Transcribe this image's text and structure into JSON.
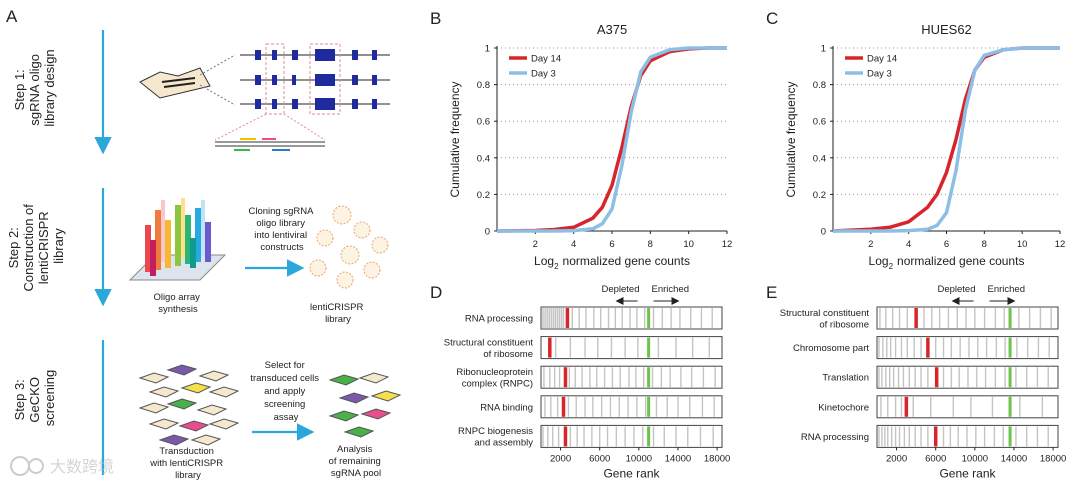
{
  "panel_a": {
    "letter": "A",
    "steps": [
      [
        "Step 1:",
        "sgRNA oligo",
        "library design"
      ],
      [
        "Step 2:",
        "Construction of",
        "lentiCRISPR",
        "library"
      ],
      [
        "Step 3:",
        "GeCKO",
        "screening"
      ]
    ],
    "cloning": [
      "Cloning sgRNA",
      "oligo library",
      "into lentiviral",
      "constructs"
    ],
    "oligo": [
      "Oligo array",
      "synthesis"
    ],
    "library": [
      "lentiCRISPR",
      "library"
    ],
    "select": [
      "Select for",
      "transduced cells",
      "and apply",
      "screening",
      "assay"
    ],
    "transduction": [
      "Transduction",
      "with lentiCRISPR",
      "library"
    ],
    "analysis": [
      "Analysis",
      "of remaining",
      "sgRNA pool"
    ]
  },
  "watermark": "大数跨境",
  "chart_data": [
    {
      "panel": "B",
      "type": "line",
      "title": "A375",
      "ylabel": "Cumulative frequency",
      "xlabel": [
        "Log",
        "2",
        "normalized gene counts"
      ],
      "x": [
        0,
        2,
        3,
        4,
        5,
        5.5,
        6,
        6.5,
        7,
        7.5,
        8,
        9,
        10,
        11,
        12
      ],
      "xlim": [
        0,
        12
      ],
      "ylim": [
        0,
        1
      ],
      "xticks": [
        2,
        4,
        6,
        8,
        10,
        12
      ],
      "yticks": [
        0,
        0.2,
        0.4,
        0.6,
        0.8,
        1
      ],
      "grid": true,
      "legend": "upper left",
      "series": [
        {
          "name": "Day 14",
          "color": "#d7262b",
          "values": [
            0,
            0.003,
            0.008,
            0.02,
            0.07,
            0.13,
            0.25,
            0.45,
            0.68,
            0.85,
            0.93,
            0.98,
            0.995,
            1,
            1
          ]
        },
        {
          "name": "Day 3",
          "color": "#8cbfe6",
          "values": [
            0,
            0,
            0,
            0.002,
            0.012,
            0.04,
            0.12,
            0.35,
            0.65,
            0.87,
            0.95,
            0.99,
            1,
            1,
            1
          ]
        }
      ]
    },
    {
      "panel": "C",
      "type": "line",
      "title": "HUES62",
      "ylabel": "Cumulative frequency",
      "xlabel": [
        "Log",
        "2",
        "normalized gene counts"
      ],
      "x": [
        0,
        2,
        3,
        4,
        5,
        5.5,
        6,
        6.5,
        7,
        7.5,
        8,
        9,
        10,
        11,
        12
      ],
      "xlim": [
        0,
        12
      ],
      "ylim": [
        0,
        1
      ],
      "xticks": [
        2,
        4,
        6,
        8,
        10,
        12
      ],
      "yticks": [
        0,
        0.2,
        0.4,
        0.6,
        0.8,
        1
      ],
      "grid": true,
      "legend": "upper left",
      "series": [
        {
          "name": "Day 14",
          "color": "#d7262b",
          "values": [
            0,
            0.01,
            0.02,
            0.05,
            0.13,
            0.2,
            0.32,
            0.5,
            0.72,
            0.88,
            0.95,
            0.99,
            1,
            1,
            1
          ]
        },
        {
          "name": "Day 3",
          "color": "#8cbfe6",
          "values": [
            0,
            0,
            0,
            0.002,
            0.01,
            0.03,
            0.1,
            0.33,
            0.66,
            0.88,
            0.96,
            0.99,
            1,
            1,
            1
          ]
        }
      ]
    },
    {
      "panel": "D",
      "type": "barcode",
      "xlabel": "Gene rank",
      "xlim": [
        0,
        18500
      ],
      "xticks": [
        2000,
        6000,
        10000,
        14000,
        18000
      ],
      "annotations": [
        "Depleted",
        "Enriched"
      ],
      "gene_color": "#c4c4c4",
      "red_color": "#d7262b",
      "green_color": "#6cc24a",
      "rows": [
        {
          "label": [
            "RNA processing"
          ],
          "ranks": [
            100,
            300,
            500,
            700,
            900,
            1100,
            1300,
            1500,
            1700,
            1900,
            2100,
            2300,
            3200,
            3900,
            4600,
            5400,
            6100,
            6900,
            7600,
            8300,
            9100,
            9800,
            10600,
            11500,
            12400,
            13300,
            14200,
            15300,
            16400,
            17500
          ],
          "red_rank": 2700,
          "green_rank": 11000
        },
        {
          "label": [
            "Structural constituent",
            "of ribosome"
          ],
          "ranks": [
            1500,
            3000,
            4500,
            5800,
            7200,
            8600,
            9900,
            12000,
            13800,
            15500,
            17200
          ],
          "red_rank": 900,
          "green_rank": 11000
        },
        {
          "label": [
            "Ribonucleoprotein",
            "complex (RNPC)"
          ],
          "ranks": [
            300,
            900,
            1400,
            1900,
            2900,
            3500,
            4200,
            5000,
            5700,
            6500,
            7300,
            8100,
            9000,
            9700,
            10500,
            11400,
            12300,
            13200,
            14300,
            15400,
            16600,
            17800
          ],
          "red_rank": 2500,
          "green_rank": 11000
        },
        {
          "label": [
            "RNA binding"
          ],
          "ranks": [
            400,
            1000,
            1700,
            2800,
            3600,
            4500,
            5300,
            6200,
            7100,
            8000,
            8900,
            9800,
            10700,
            11800,
            12900,
            14000,
            15200,
            16500,
            17700
          ],
          "red_rank": 2300,
          "green_rank": 11000
        },
        {
          "label": [
            "RNPC biogenesis",
            "and assembly"
          ],
          "ranks": [
            200,
            700,
            1200,
            1800,
            3000,
            3700,
            4400,
            5200,
            6000,
            6800,
            7700,
            8600,
            9500,
            10400,
            11500,
            12600,
            13800,
            15000,
            16300,
            17600
          ],
          "red_rank": 2500,
          "green_rank": 11000
        }
      ]
    },
    {
      "panel": "E",
      "type": "barcode",
      "xlabel": "Gene rank",
      "xlim": [
        0,
        18500
      ],
      "xticks": [
        2000,
        6000,
        10000,
        14000,
        18000
      ],
      "annotations": [
        "Depleted",
        "Enriched"
      ],
      "gene_color": "#c4c4c4",
      "red_color": "#d7262b",
      "green_color": "#6cc24a",
      "rows": [
        {
          "label": [
            "Structural constituent",
            "of ribosome"
          ],
          "ranks": [
            300,
            900,
            1600,
            2300,
            3100,
            4800,
            5600,
            6400,
            7300,
            8200,
            9100,
            10000,
            11000,
            12100,
            13000,
            14500,
            15600,
            16700,
            17800
          ],
          "red_rank": 4000,
          "green_rank": 13600
        },
        {
          "label": [
            "Chromosome part"
          ],
          "ranks": [
            200,
            600,
            1000,
            1400,
            1900,
            2500,
            3100,
            3800,
            4500,
            6000,
            6800,
            7600,
            8500,
            9400,
            10300,
            11200,
            12200,
            13100,
            14300,
            15400,
            16500,
            17600
          ],
          "red_rank": 5200,
          "green_rank": 13600
        },
        {
          "label": [
            "Translation"
          ],
          "ranks": [
            200,
            500,
            900,
            1300,
            1700,
            2200,
            2700,
            3300,
            3900,
            4500,
            5200,
            6800,
            7600,
            8400,
            9300,
            10200,
            11100,
            12100,
            13100,
            14200,
            15300,
            16400,
            17500
          ],
          "red_rank": 6100,
          "green_rank": 13600
        },
        {
          "label": [
            "Kinetochore"
          ],
          "ranks": [
            400,
            1100,
            1900,
            2500,
            3700,
            5500,
            7800,
            9600,
            11800,
            14600,
            16900
          ],
          "red_rank": 3000,
          "green_rank": 13600
        },
        {
          "label": [
            "RNA processing"
          ],
          "ranks": [
            200,
            500,
            800,
            1100,
            1500,
            1900,
            2300,
            2800,
            3300,
            3900,
            4500,
            5200,
            6800,
            7500,
            8300,
            9200,
            10100,
            11000,
            12000,
            12900,
            14200,
            15300,
            16400,
            17500
          ],
          "red_rank": 6000,
          "green_rank": 13600
        }
      ]
    }
  ]
}
